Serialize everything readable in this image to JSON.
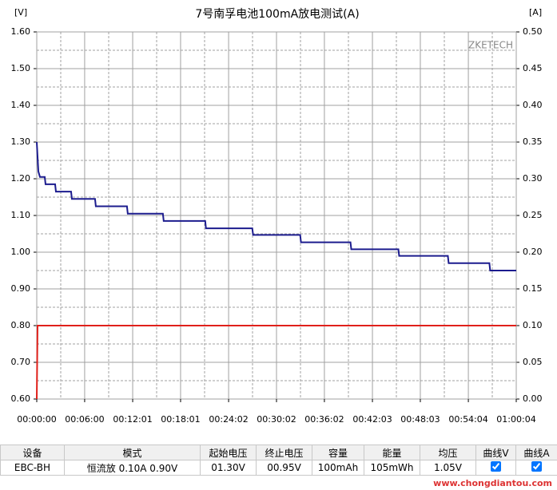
{
  "chart_data": {
    "type": "line",
    "title": "7号南孚电池100mA放电测试(A)",
    "ylabel": "[V]",
    "y2label": "[A]",
    "watermark": "ZKETECH",
    "xlim": [
      0,
      3604
    ],
    "xticks": [
      {
        "value": 0,
        "label": "00:00:00"
      },
      {
        "value": 360,
        "label": "00:06:00"
      },
      {
        "value": 721,
        "label": "00:12:01"
      },
      {
        "value": 1081,
        "label": "00:18:01"
      },
      {
        "value": 1442,
        "label": "00:24:02"
      },
      {
        "value": 1802,
        "label": "00:30:02"
      },
      {
        "value": 2162,
        "label": "00:36:02"
      },
      {
        "value": 2523,
        "label": "00:42:03"
      },
      {
        "value": 2883,
        "label": "00:48:03"
      },
      {
        "value": 3244,
        "label": "00:54:04"
      },
      {
        "value": 3604,
        "label": "01:00:04"
      }
    ],
    "ylim": [
      0.6,
      1.6
    ],
    "yticks": [
      {
        "value": 0.6,
        "label": "0.60"
      },
      {
        "value": 0.7,
        "label": "0.70"
      },
      {
        "value": 0.8,
        "label": "0.80"
      },
      {
        "value": 0.9,
        "label": "0.90"
      },
      {
        "value": 1.0,
        "label": "1.00"
      },
      {
        "value": 1.1,
        "label": "1.10"
      },
      {
        "value": 1.2,
        "label": "1.20"
      },
      {
        "value": 1.3,
        "label": "1.30"
      },
      {
        "value": 1.4,
        "label": "1.40"
      },
      {
        "value": 1.5,
        "label": "1.50"
      },
      {
        "value": 1.6,
        "label": "1.60"
      }
    ],
    "y2lim": [
      0,
      0.5
    ],
    "y2ticks": [
      {
        "value": 0,
        "label": "0.00"
      },
      {
        "value": 0.05,
        "label": "0.05"
      },
      {
        "value": 0.1,
        "label": "0.10"
      },
      {
        "value": 0.15,
        "label": "0.15"
      },
      {
        "value": 0.2,
        "label": "0.20"
      },
      {
        "value": 0.25,
        "label": "0.25"
      },
      {
        "value": 0.3,
        "label": "0.30"
      },
      {
        "value": 0.35,
        "label": "0.35"
      },
      {
        "value": 0.4,
        "label": "0.40"
      },
      {
        "value": 0.45,
        "label": "0.45"
      },
      {
        "value": 0.5,
        "label": "0.50"
      }
    ],
    "grid": true,
    "series": [
      {
        "color": "#1c1c8e",
        "x": [
          0,
          12,
          24,
          60,
          66,
          138,
          144,
          258,
          264,
          438,
          444,
          678,
          684,
          948,
          954,
          1266,
          1272,
          1620,
          1626,
          1980,
          1986,
          2358,
          2364,
          2718,
          2724,
          3090,
          3096,
          3402,
          3408,
          3604
        ],
        "values": [
          1.3,
          1.22,
          1.205,
          1.205,
          1.185,
          1.185,
          1.165,
          1.165,
          1.145,
          1.145,
          1.125,
          1.125,
          1.105,
          1.105,
          1.085,
          1.085,
          1.065,
          1.065,
          1.047,
          1.047,
          1.027,
          1.027,
          1.008,
          1.008,
          0.99,
          0.99,
          0.97,
          0.97,
          0.95,
          0.95
        ]
      },
      {
        "color": "#e0201a",
        "axis": "y2",
        "x": [
          0,
          6,
          3604
        ],
        "values": [
          0,
          0.1,
          0.1
        ]
      }
    ]
  },
  "table": {
    "headers": [
      "设备",
      "模式",
      "起始电压",
      "终止电压",
      "容量",
      "能量",
      "均压",
      "曲线V",
      "曲线A"
    ],
    "rows": [
      [
        "EBC-BH",
        "恒流放  0.10A  0.90V",
        "01.30V",
        "00.95V",
        "100mAh",
        "105mWh",
        "1.05V",
        "",
        ""
      ]
    ]
  },
  "footer": {
    "site": "www.chongdiantou.com"
  }
}
